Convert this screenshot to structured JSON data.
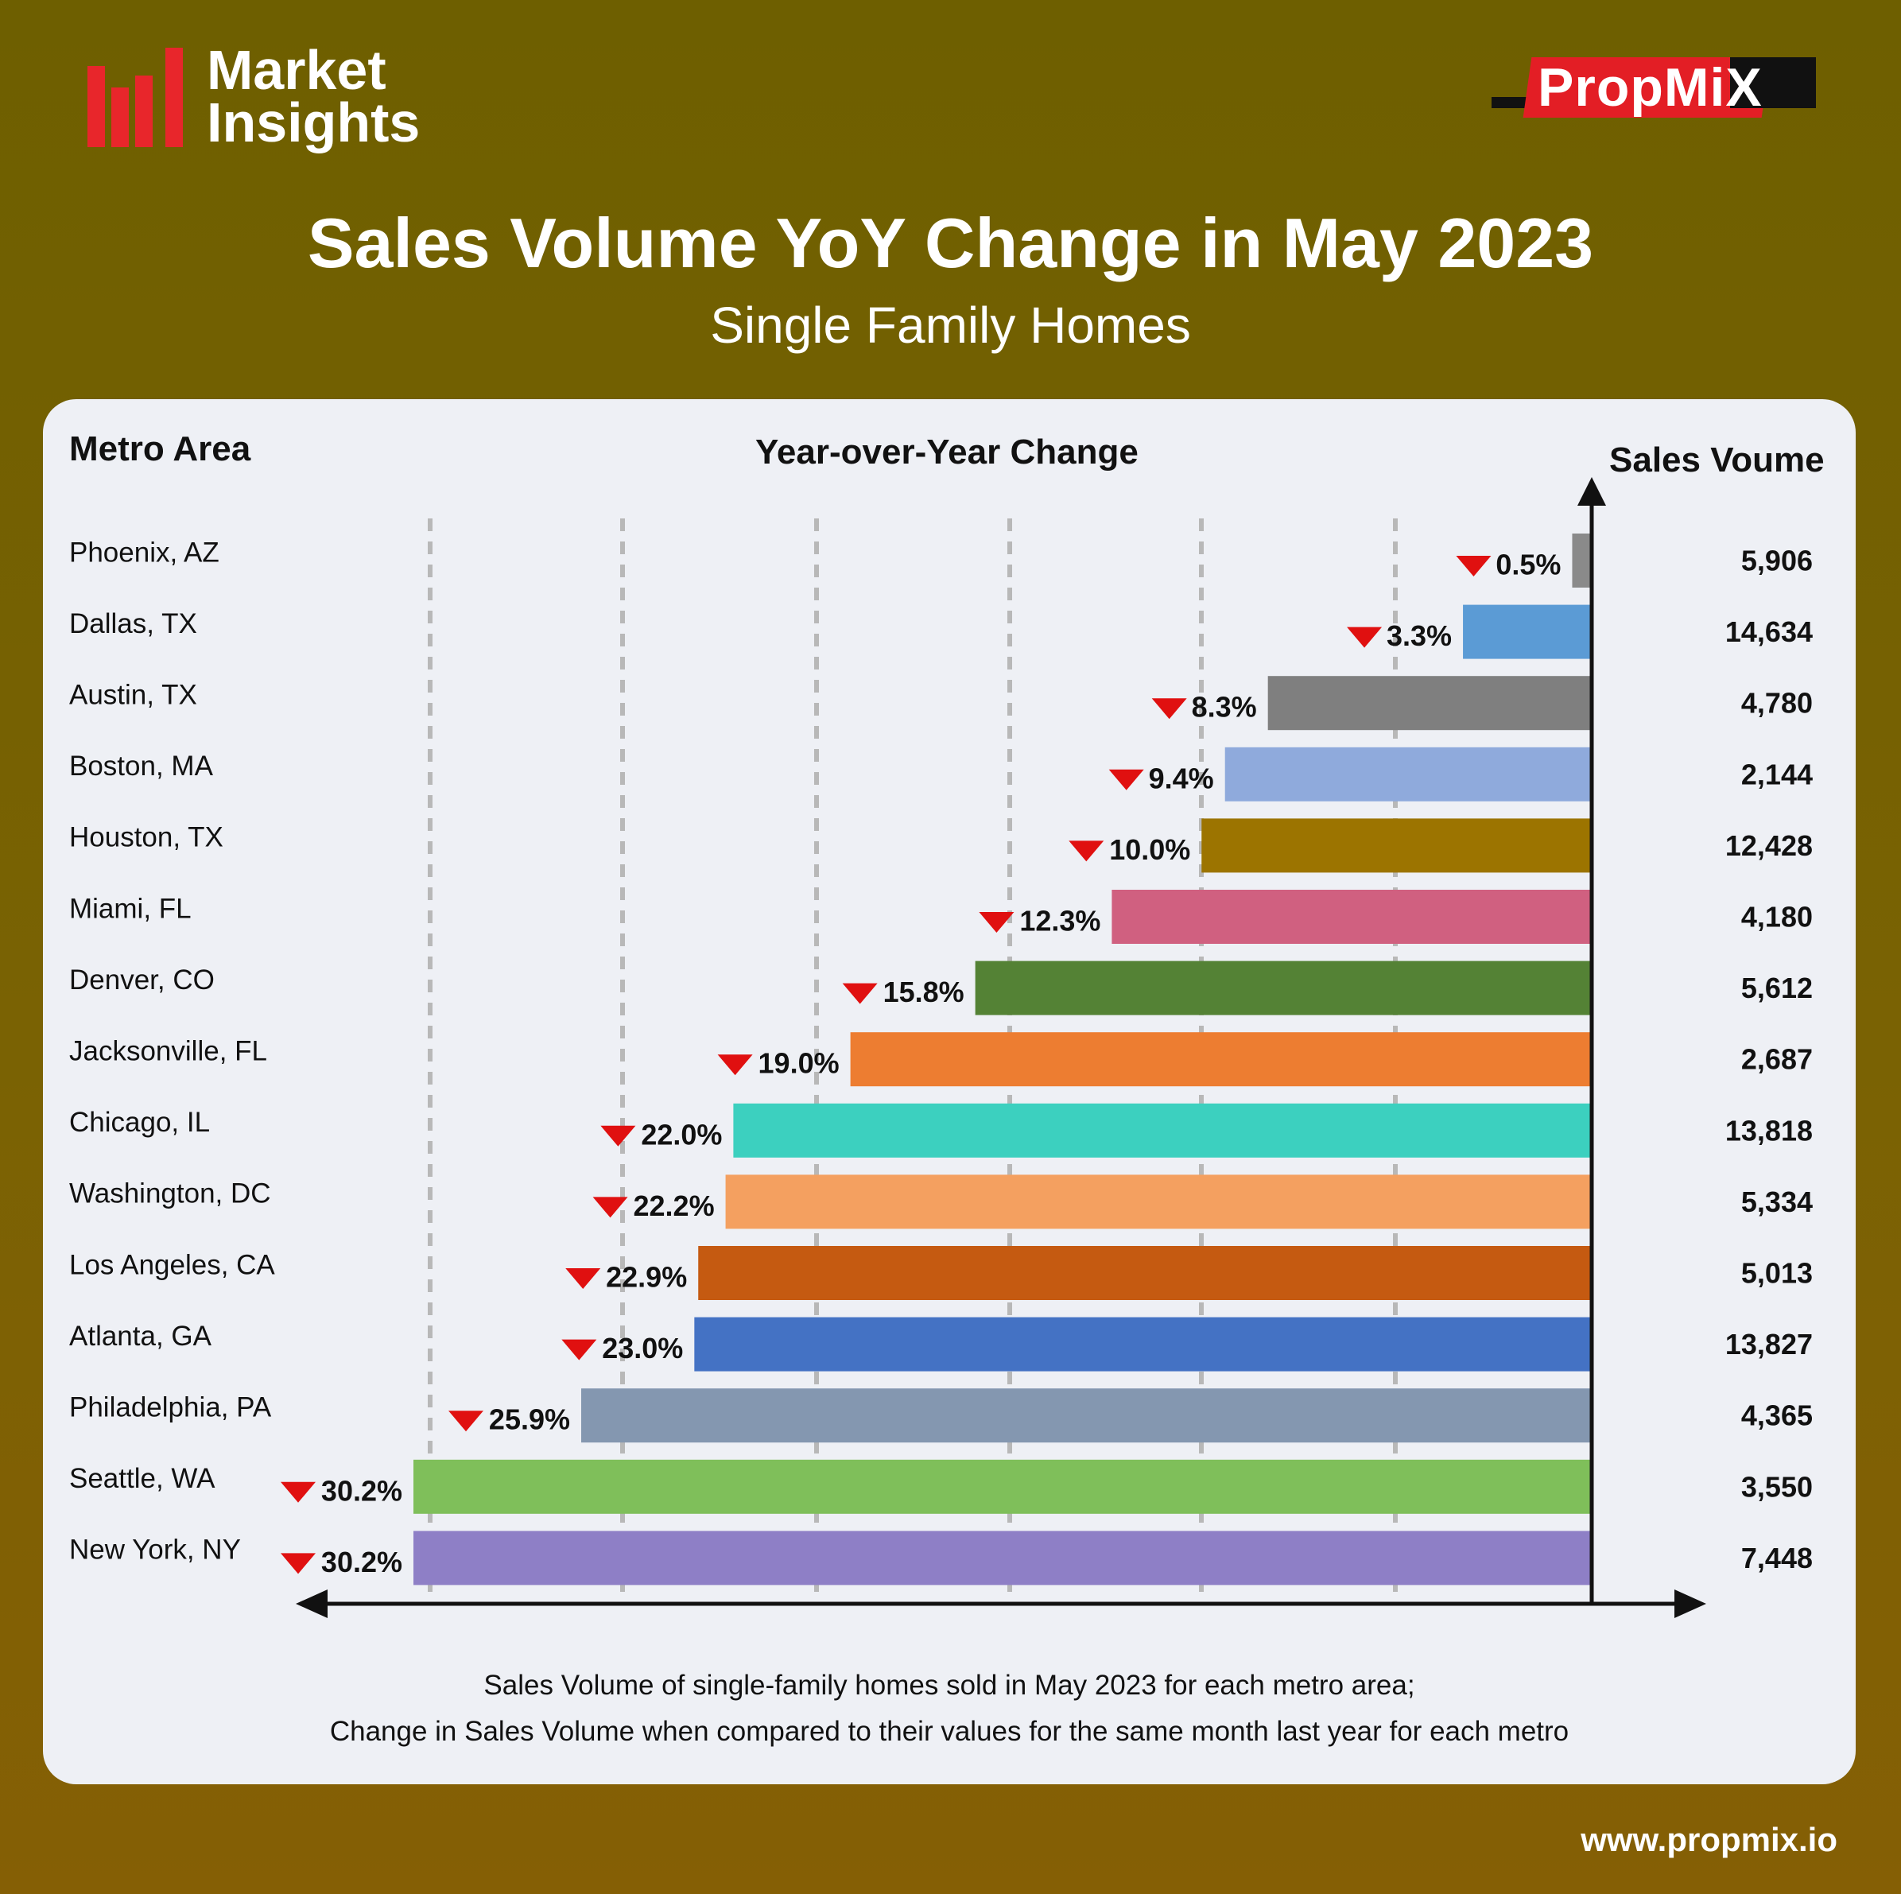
{
  "brand": {
    "left_logo_line1": "Market",
    "left_logo_line2": "Insights",
    "right_logo": "PropMiX",
    "website": "www.propmix.io"
  },
  "colors": {
    "background": "#73600a",
    "card": "#eef0f5",
    "down_marker": "#e01010"
  },
  "chart_data": {
    "type": "bar",
    "orientation": "horizontal",
    "title": "Sales Volume YoY Change in May 2023",
    "subtitle": "Single Family Homes",
    "column_headers": {
      "metro": "Metro Area",
      "change": "Year-over-Year Change",
      "volume": "Sales Voume"
    },
    "xlim": [
      0,
      31
    ],
    "value_unit": "%",
    "change_direction": "down",
    "categories": [
      "Phoenix, AZ",
      "Dallas, TX",
      "Austin, TX",
      "Boston, MA",
      "Houston, TX",
      "Miami, FL",
      "Denver, CO",
      "Jacksonville, FL",
      "Chicago, IL",
      "Washington, DC",
      "Los Angeles, CA",
      "Atlanta, GA",
      "Philadelphia, PA",
      "Seattle, WA",
      "New York, NY"
    ],
    "values": [
      0.5,
      3.3,
      8.3,
      9.4,
      10.0,
      12.3,
      15.8,
      19.0,
      22.0,
      22.2,
      22.9,
      23.0,
      25.9,
      30.2,
      30.2
    ],
    "value_labels": [
      "0.5%",
      "3.3%",
      "8.3%",
      "9.4%",
      "10.0%",
      "12.3%",
      "15.8%",
      "19.0%",
      "22.0%",
      "22.2%",
      "22.9%",
      "23.0%",
      "25.9%",
      "30.2%",
      "30.2%"
    ],
    "sales_volume": [
      "5,906",
      "14,634",
      "4,780",
      "2,144",
      "12,428",
      "4,180",
      "5,612",
      "2,687",
      "13,818",
      "5,334",
      "5,013",
      "13,827",
      "4,365",
      "3,550",
      "7,448"
    ],
    "bar_colors": [
      "#8a8a8a",
      "#5b9bd5",
      "#7f7f7f",
      "#8faadc",
      "#9c7400",
      "#d06080",
      "#548235",
      "#ed7d31",
      "#3cd0bf",
      "#f4a060",
      "#c55a11",
      "#4472c4",
      "#8497b0",
      "#7fbf5a",
      "#8e7fc6"
    ],
    "footnote_line1": "Sales Volume of single-family homes sold in May 2023 for each metro area;",
    "footnote_line2": "Change in Sales Volume when compared to their values for the same month last year for each metro"
  }
}
